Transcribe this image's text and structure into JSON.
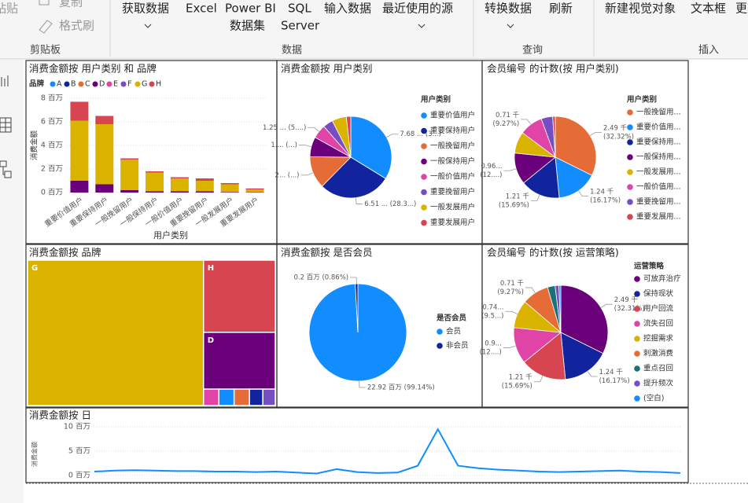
{
  "ribbon": {
    "paste": "粘贴",
    "copy": "复制",
    "format_painter": "格式刷",
    "get_data": "获取数据",
    "excel": "Excel",
    "pbi_dataset": [
      "Power BI",
      "数据集"
    ],
    "sql_server": [
      "SQL",
      "Server"
    ],
    "enter_data": "输入数据",
    "recent_sources": "最近使用的源",
    "transform_data": "转换数据",
    "refresh": "刷新",
    "new_visual": "新建视觉对象",
    "text_box": "文本框",
    "more": "更",
    "groups": [
      "剪贴板",
      "数据",
      "查询",
      "插入"
    ]
  },
  "chart_data": [
    {
      "type": "bar",
      "stacked": true,
      "title": "消费金额按 用户类别 和 品牌",
      "legend_title": "品牌",
      "x_label": "用户类别",
      "y_label": "消费金额",
      "categories": [
        "重要价值用户",
        "重要保持用户",
        "一般挽留用户",
        "一般保持用户",
        "一般价值用户",
        "重要挽留用户",
        "一般发展用户",
        "重要发展用户"
      ],
      "series": [
        {
          "name": "A",
          "color": "#118DFF",
          "values": [
            0,
            0,
            0,
            0,
            0,
            0,
            0,
            0
          ]
        },
        {
          "name": "B",
          "color": "#12239E",
          "values": [
            0,
            0,
            0,
            0,
            0,
            0,
            0,
            0
          ]
        },
        {
          "name": "C",
          "color": "#E66C37",
          "values": [
            0,
            0,
            0,
            0,
            0,
            0,
            0,
            0
          ]
        },
        {
          "name": "D",
          "color": "#6B007B",
          "values": [
            1.0,
            0.7,
            0.2,
            0.1,
            0.1,
            0.1,
            0.05,
            0.03
          ]
        },
        {
          "name": "E",
          "color": "#E044A7",
          "values": [
            0,
            0,
            0,
            0,
            0,
            0,
            0,
            0
          ]
        },
        {
          "name": "F",
          "color": "#744EC2",
          "values": [
            0,
            0,
            0,
            0,
            0,
            0,
            0,
            0
          ]
        },
        {
          "name": "G",
          "color": "#D9B300",
          "values": [
            5.1,
            5.1,
            2.6,
            1.6,
            1.1,
            0.9,
            0.65,
            0.22
          ]
        },
        {
          "name": "H",
          "color": "#D64550",
          "values": [
            1.6,
            0.7,
            0.1,
            0.1,
            0.1,
            0.2,
            0.1,
            0.1
          ]
        }
      ],
      "ylim": [
        0,
        8
      ],
      "yticks": [
        {
          "value": 0,
          "label": "0 百万"
        },
        {
          "value": 2,
          "label": "2 百万"
        },
        {
          "value": 4,
          "label": "4 百万"
        },
        {
          "value": 6,
          "label": "6 百万"
        },
        {
          "value": 8,
          "label": "8 百万"
        }
      ],
      "grid": true
    },
    {
      "type": "pie",
      "title": "消费金额按 用户类别",
      "legend_title": "用户类别",
      "categories": [
        "重要价值用户",
        "重要保持用户",
        "一般挽留用户",
        "一般保持用户",
        "一般价值用户",
        "重要挽留用户",
        "一般发展用户",
        "重要发展用户"
      ],
      "colors": [
        "#118DFF",
        "#12239E",
        "#E66C37",
        "#6B007B",
        "#E044A7",
        "#744EC2",
        "#D9B300",
        "#D64550"
      ],
      "values": [
        7.68,
        6.51,
        2.9,
        1.8,
        1.25,
        0.9,
        1.3,
        0.4
      ],
      "value_labels": [
        [
          "7.68 ... (3...)"
        ],
        [
          "6.51 ... (28.3...)"
        ],
        [
          "2... (...)"
        ],
        [
          "1.... (...)"
        ],
        [
          "1.25 ... (5....)"
        ],
        null,
        null,
        null
      ]
    },
    {
      "type": "pie",
      "title": "会员编号 的计数(按 用户类别)",
      "legend_title": "用户类别",
      "categories": [
        "一般挽留用...",
        "重要价值用...",
        "重要保持用...",
        "一般保持用...",
        "一般发展用...",
        "一般价值用...",
        "重要挽留用...",
        "重要发展用..."
      ],
      "colors": [
        "#E66C37",
        "#118DFF",
        "#12239E",
        "#6B007B",
        "#D9B300",
        "#E044A7",
        "#744EC2",
        "#D64550"
      ],
      "values": [
        2.49,
        1.24,
        1.21,
        0.96,
        0.66,
        0.71,
        0.35,
        0.08
      ],
      "value_labels": [
        [
          "2.49 千",
          "(32.32%)"
        ],
        [
          "1.24 千",
          "(16.17%)"
        ],
        [
          "1.21 千",
          "(15.69%)"
        ],
        [
          "0.96...",
          "(12....)"
        ],
        null,
        [
          "0.71 千",
          "(9.27%)"
        ],
        null,
        null
      ]
    },
    {
      "type": "treemap",
      "title": "消费金额按 品牌",
      "categories": [
        "G",
        "H",
        "D",
        null,
        null,
        null,
        null,
        null
      ],
      "colors": [
        "#D9B300",
        "#D64550",
        "#6B007B",
        "#E044A7",
        "#118DFF",
        "#E66C37",
        "#12239E",
        "#744EC2"
      ],
      "values": [
        16.3,
        3.3,
        2.6,
        0.16,
        0.16,
        0.16,
        0.14,
        0.13
      ]
    },
    {
      "type": "pie",
      "title": "消费金额按 是否会员",
      "legend_title": "是否会员",
      "categories": [
        "会员",
        "非会员"
      ],
      "colors": [
        "#118DFF",
        "#12239E"
      ],
      "values": [
        22.92,
        0.2
      ],
      "value_labels": [
        [
          "22.92 百万 (99.14%)"
        ],
        [
          "0.2 百万 (0.86%)"
        ]
      ]
    },
    {
      "type": "pie",
      "title": "会员编号 的计数(按 运营策略)",
      "legend_title": "运营策略",
      "categories": [
        "可放弃治疗",
        "保持现状",
        "用户回流",
        "流失召回",
        "挖掘需求",
        "刺激消费",
        "重点召回",
        "提升频次",
        "(空白)"
      ],
      "colors": [
        "#6B007B",
        "#12239E",
        "#D64550",
        "#E044A7",
        "#D9B300",
        "#E66C37",
        "#197278",
        "#744EC2",
        "#118DFF"
      ],
      "values": [
        2.49,
        1.24,
        1.21,
        0.96,
        0.74,
        0.71,
        0.2,
        0.1,
        0.05
      ],
      "value_labels": [
        [
          "2.49 千",
          "(32.31%)"
        ],
        [
          "1.24 千",
          "(16.17%)"
        ],
        [
          "1.21 千",
          "(15.69%)"
        ],
        [
          "0.9...",
          "(12....)"
        ],
        [
          "0.74...",
          "(9.5...)"
        ],
        [
          "0.71 千",
          "(9.27%)"
        ],
        null,
        null,
        null
      ]
    },
    {
      "type": "line",
      "title": "消费金额按 日",
      "y_label": "消费金额",
      "color": "#118DFF",
      "values": [
        0.8,
        1.0,
        1.1,
        1.0,
        0.9,
        0.9,
        0.8,
        0.8,
        0.7,
        0.8,
        0.6,
        0.4,
        1.3,
        0.7,
        0.5,
        0.6,
        2.0,
        9.5,
        2.0,
        1.5,
        1.2,
        1.0,
        0.8,
        0.7,
        0.8,
        0.9,
        1.0,
        0.8,
        0.7,
        0.5
      ],
      "ylim": [
        0,
        10.5
      ],
      "yticks": [
        {
          "value": 0,
          "label": "0 百万"
        },
        {
          "value": 5,
          "label": "5 百万"
        },
        {
          "value": 10,
          "label": "10 百万"
        }
      ],
      "grid": true
    }
  ]
}
